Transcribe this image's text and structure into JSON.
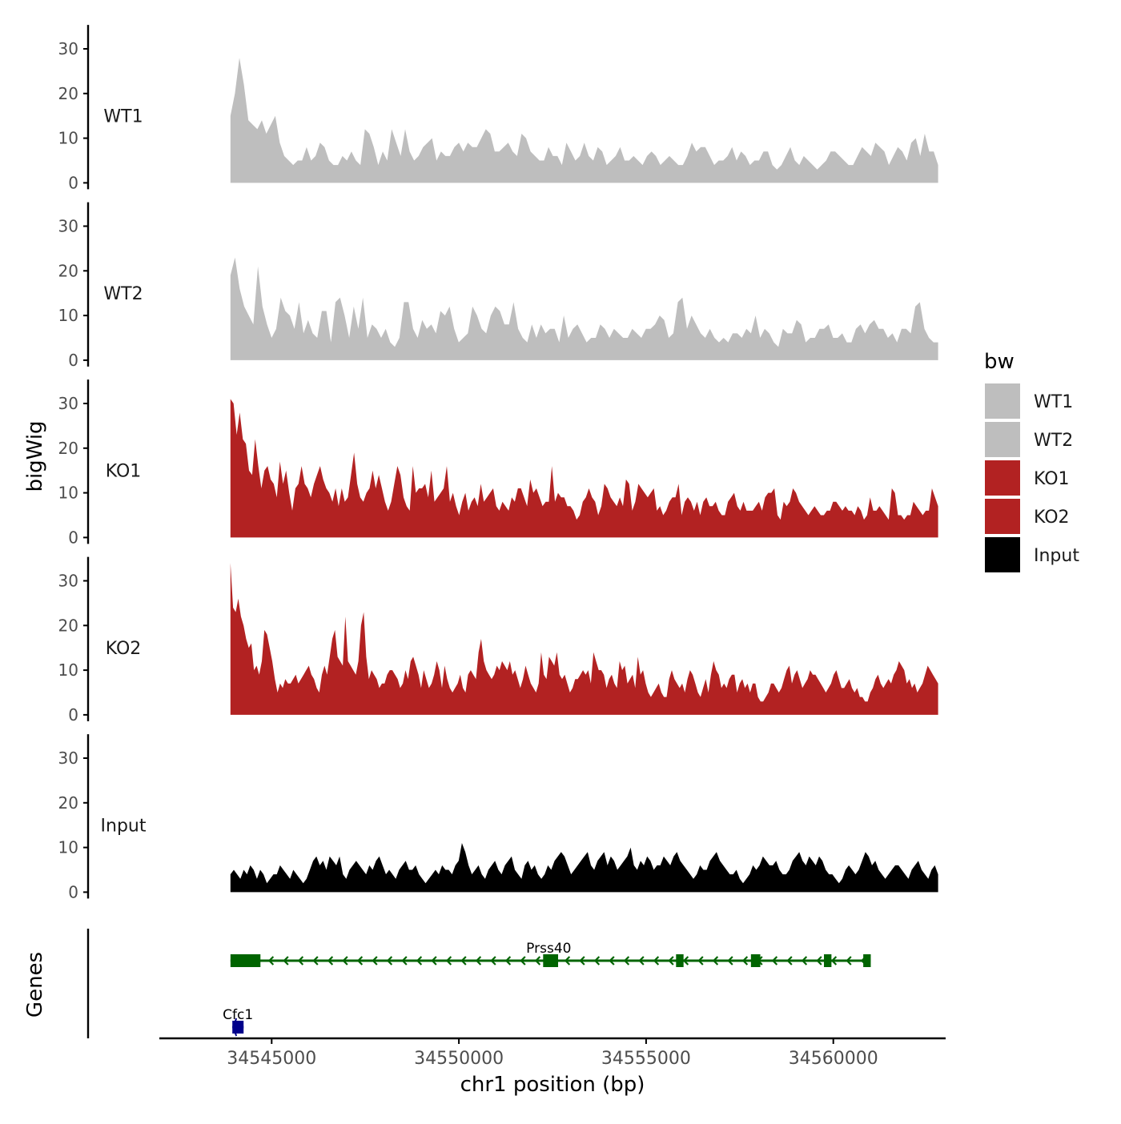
{
  "chart_data": {
    "type": "area",
    "title": "",
    "ylabel": "bigWig",
    "genes_label": "Genes",
    "xlabel": "chr1 position (bp)",
    "xlim": [
      34542000,
      34563000
    ],
    "region": [
      34543900,
      34562800
    ],
    "x_ticks": [
      {
        "value": 34545000,
        "label": "34545000"
      },
      {
        "value": 34550000,
        "label": "34550000"
      },
      {
        "value": 34555000,
        "label": "34555000"
      },
      {
        "value": 34560000,
        "label": "34560000"
      }
    ],
    "ylim": [
      0,
      35
    ],
    "y_ticks": [
      {
        "value": 0,
        "label": "0"
      },
      {
        "value": 10,
        "label": "10"
      },
      {
        "value": 20,
        "label": "20"
      },
      {
        "value": 30,
        "label": "30"
      }
    ],
    "legend": {
      "title": "bw",
      "position": "right",
      "entries": [
        {
          "label": "WT1",
          "color": "#bebebe"
        },
        {
          "label": "WT2",
          "color": "#bebebe"
        },
        {
          "label": "KO1",
          "color": "#b22222"
        },
        {
          "label": "KO2",
          "color": "#b22222"
        },
        {
          "label": "Input",
          "color": "#000000"
        }
      ]
    },
    "series": [
      {
        "name": "WT1",
        "color": "#bebebe",
        "values": [
          15,
          20,
          28,
          22,
          14,
          13,
          12,
          14,
          11,
          13,
          15,
          9,
          6,
          5,
          4,
          5,
          5,
          8,
          5,
          6,
          9,
          8,
          5,
          4,
          4,
          6,
          5,
          7,
          5,
          4,
          12,
          11,
          8,
          4,
          7,
          5,
          12,
          9,
          6,
          12,
          7,
          5,
          6,
          8,
          9,
          10,
          5,
          7,
          6,
          6,
          8,
          9,
          7,
          9,
          8,
          8,
          10,
          12,
          11,
          7,
          7,
          8,
          9,
          7,
          6,
          11,
          10,
          7,
          6,
          5,
          5,
          8,
          6,
          6,
          4,
          9,
          7,
          5,
          6,
          9,
          6,
          5,
          8,
          7,
          4,
          5,
          6,
          8,
          5,
          5,
          6,
          5,
          4,
          6,
          7,
          6,
          4,
          5,
          6,
          5,
          4,
          4,
          6,
          9,
          7,
          8,
          8,
          6,
          4,
          5,
          5,
          6,
          8,
          5,
          7,
          6,
          4,
          5,
          5,
          7,
          7,
          4,
          3,
          4,
          6,
          8,
          5,
          4,
          6,
          5,
          4,
          3,
          4,
          5,
          7,
          7,
          6,
          5,
          4,
          4,
          6,
          8,
          7,
          6,
          9,
          8,
          7,
          4,
          6,
          8,
          7,
          5,
          9,
          10,
          6,
          11,
          7,
          7,
          4
        ]
      },
      {
        "name": "WT2",
        "color": "#bebebe",
        "values": [
          19,
          23,
          16,
          12,
          10,
          8,
          21,
          12,
          8,
          5,
          7,
          14,
          11,
          10,
          7,
          13,
          6,
          9,
          6,
          5,
          11,
          11,
          4,
          13,
          14,
          10,
          5,
          12,
          7,
          14,
          5,
          8,
          7,
          5,
          7,
          4,
          3,
          5,
          13,
          13,
          7,
          5,
          9,
          7,
          8,
          6,
          11,
          10,
          12,
          7,
          4,
          5,
          6,
          12,
          10,
          7,
          6,
          10,
          12,
          11,
          8,
          8,
          13,
          7,
          5,
          4,
          8,
          5,
          8,
          6,
          7,
          7,
          4,
          10,
          5,
          7,
          8,
          6,
          4,
          5,
          5,
          8,
          7,
          5,
          7,
          6,
          5,
          5,
          7,
          6,
          5,
          7,
          7,
          8,
          10,
          9,
          5,
          6,
          13,
          14,
          7,
          10,
          8,
          6,
          5,
          7,
          5,
          4,
          5,
          4,
          6,
          6,
          5,
          7,
          6,
          10,
          5,
          7,
          6,
          4,
          3,
          7,
          6,
          6,
          9,
          8,
          4,
          5,
          5,
          7,
          7,
          8,
          5,
          5,
          6,
          4,
          4,
          7,
          8,
          6,
          8,
          9,
          7,
          7,
          5,
          6,
          4,
          7,
          7,
          6,
          12,
          13,
          7,
          5,
          4,
          4
        ]
      },
      {
        "name": "KO1",
        "color": "#b22222",
        "values": [
          31,
          30,
          23,
          28,
          22,
          21,
          15,
          14,
          22,
          16,
          11,
          15,
          16,
          13,
          12,
          9,
          17,
          12,
          15,
          10,
          6,
          11,
          12,
          16,
          12,
          11,
          9,
          12,
          14,
          16,
          13,
          11,
          10,
          8,
          11,
          7,
          11,
          8,
          9,
          14,
          19,
          12,
          9,
          8,
          10,
          11,
          15,
          11,
          14,
          11,
          8,
          6,
          8,
          12,
          16,
          14,
          9,
          7,
          6,
          16,
          10,
          11,
          11,
          12,
          9,
          15,
          8,
          9,
          10,
          11,
          16,
          8,
          10,
          7,
          5,
          8,
          10,
          6,
          8,
          9,
          7,
          12,
          8,
          9,
          10,
          11,
          7,
          6,
          8,
          7,
          6,
          9,
          8,
          11,
          11,
          9,
          7,
          13,
          10,
          11,
          9,
          7,
          8,
          8,
          16,
          8,
          10,
          9,
          9,
          7,
          7,
          6,
          4,
          5,
          8,
          9,
          11,
          9,
          8,
          5,
          7,
          12,
          11,
          9,
          8,
          7,
          9,
          7,
          13,
          12,
          6,
          8,
          12,
          11,
          10,
          9,
          10,
          11,
          6,
          7,
          5,
          6,
          8,
          9,
          9,
          12,
          5,
          8,
          9,
          8,
          6,
          8,
          5,
          8,
          9,
          7,
          7,
          8,
          6,
          5,
          5,
          8,
          9,
          10,
          7,
          6,
          8,
          6,
          6,
          6,
          7,
          8,
          6,
          9,
          10,
          10,
          11,
          5,
          4,
          8,
          7,
          8,
          11,
          10,
          8,
          7,
          6,
          5,
          6,
          7,
          6,
          5,
          5,
          6,
          6,
          8,
          8,
          7,
          6,
          7,
          6,
          6,
          5,
          7,
          6,
          4,
          5,
          9,
          6,
          6,
          7,
          6,
          5,
          4,
          11,
          10,
          5,
          5,
          4,
          5,
          5,
          8,
          7,
          6,
          5,
          6,
          6,
          11,
          9,
          7
        ]
      },
      {
        "name": "KO2",
        "color": "#b22222",
        "values": [
          34,
          24,
          23,
          26,
          22,
          20,
          17,
          15,
          16,
          10,
          11,
          9,
          12,
          19,
          18,
          15,
          12,
          8,
          5,
          7,
          6,
          8,
          7,
          7,
          8,
          9,
          7,
          8,
          9,
          10,
          11,
          9,
          8,
          6,
          5,
          9,
          11,
          9,
          13,
          17,
          19,
          13,
          12,
          11,
          22,
          12,
          11,
          10,
          9,
          12,
          20,
          23,
          13,
          8,
          10,
          9,
          8,
          6,
          7,
          7,
          9,
          10,
          10,
          9,
          8,
          6,
          7,
          10,
          8,
          12,
          13,
          11,
          9,
          6,
          10,
          8,
          6,
          7,
          9,
          12,
          10,
          6,
          11,
          8,
          6,
          5,
          6,
          7,
          9,
          6,
          5,
          9,
          10,
          9,
          8,
          14,
          17,
          12,
          10,
          9,
          8,
          9,
          11,
          10,
          12,
          11,
          10,
          12,
          9,
          10,
          8,
          6,
          8,
          11,
          9,
          7,
          6,
          5,
          7,
          14,
          9,
          8,
          13,
          12,
          11,
          14,
          9,
          8,
          9,
          7,
          5,
          6,
          8,
          8,
          9,
          10,
          9,
          10,
          7,
          14,
          12,
          10,
          10,
          9,
          6,
          8,
          9,
          7,
          6,
          12,
          10,
          11,
          7,
          8,
          9,
          6,
          13,
          9,
          10,
          7,
          5,
          4,
          5,
          6,
          7,
          5,
          4,
          4,
          8,
          10,
          8,
          7,
          6,
          7,
          5,
          8,
          10,
          9,
          7,
          5,
          4,
          6,
          8,
          5,
          9,
          12,
          10,
          9,
          6,
          7,
          6,
          8,
          9,
          9,
          5,
          7,
          8,
          6,
          7,
          5,
          7,
          7,
          4,
          3,
          3,
          4,
          5,
          7,
          7,
          6,
          5,
          6,
          8,
          10,
          11,
          7,
          9,
          10,
          8,
          6,
          7,
          8,
          10,
          9,
          9,
          8,
          7,
          6,
          5,
          6,
          7,
          9,
          10,
          8,
          6,
          6,
          7,
          8,
          6,
          5,
          6,
          4,
          4,
          3,
          3,
          5,
          6,
          8,
          9,
          7,
          6,
          7,
          8,
          7,
          9,
          10,
          12,
          11,
          10,
          7,
          8,
          6,
          7,
          5,
          6,
          7,
          9,
          11,
          10,
          9,
          8,
          7
        ]
      },
      {
        "name": "Input",
        "color": "#000000",
        "values": [
          4,
          5,
          4,
          3,
          5,
          4,
          6,
          5,
          3,
          5,
          4,
          2,
          3,
          4,
          4,
          6,
          5,
          4,
          3,
          5,
          4,
          3,
          2,
          3,
          5,
          7,
          8,
          6,
          7,
          5,
          8,
          7,
          6,
          8,
          4,
          3,
          5,
          6,
          7,
          6,
          5,
          4,
          6,
          5,
          7,
          8,
          6,
          4,
          5,
          4,
          3,
          5,
          6,
          7,
          5,
          5,
          6,
          4,
          3,
          2,
          3,
          4,
          5,
          4,
          6,
          5,
          5,
          4,
          6,
          7,
          11,
          9,
          6,
          4,
          5,
          6,
          4,
          3,
          5,
          6,
          7,
          5,
          4,
          6,
          7,
          8,
          5,
          4,
          3,
          6,
          7,
          5,
          6,
          4,
          3,
          4,
          6,
          5,
          7,
          8,
          9,
          8,
          6,
          4,
          5,
          6,
          7,
          8,
          9,
          6,
          5,
          7,
          8,
          9,
          6,
          8,
          7,
          5,
          6,
          7,
          8,
          10,
          6,
          5,
          7,
          6,
          8,
          7,
          5,
          6,
          6,
          8,
          7,
          6,
          8,
          9,
          7,
          6,
          5,
          4,
          3,
          4,
          6,
          5,
          5,
          7,
          8,
          9,
          7,
          6,
          5,
          4,
          4,
          5,
          3,
          2,
          3,
          4,
          6,
          5,
          6,
          8,
          7,
          6,
          6,
          7,
          5,
          4,
          4,
          5,
          7,
          8,
          9,
          7,
          6,
          8,
          7,
          6,
          8,
          7,
          5,
          4,
          4,
          3,
          2,
          3,
          5,
          6,
          5,
          4,
          5,
          7,
          9,
          8,
          6,
          7,
          5,
          4,
          3,
          4,
          5,
          6,
          6,
          5,
          4,
          3,
          5,
          6,
          7,
          5,
          4,
          3,
          5,
          6,
          4
        ]
      }
    ],
    "genes": [
      {
        "name": "Prss40",
        "strand": "-",
        "color": "#006400",
        "row": 1,
        "start": 34543900,
        "end": 34561000,
        "label_pos": 34552400,
        "exons": [
          [
            34543900,
            34544700
          ],
          [
            34552250,
            34552650
          ],
          [
            34555800,
            34556000
          ],
          [
            34557800,
            34558050
          ],
          [
            34559750,
            34559950
          ],
          [
            34560800,
            34561000
          ]
        ]
      },
      {
        "name": "Cfc1",
        "strand": "-",
        "color": "#00008b",
        "row": 2,
        "start": 34543950,
        "end": 34544250,
        "label_pos": 34544100,
        "exons": [
          [
            34543950,
            34544250
          ]
        ]
      }
    ]
  }
}
